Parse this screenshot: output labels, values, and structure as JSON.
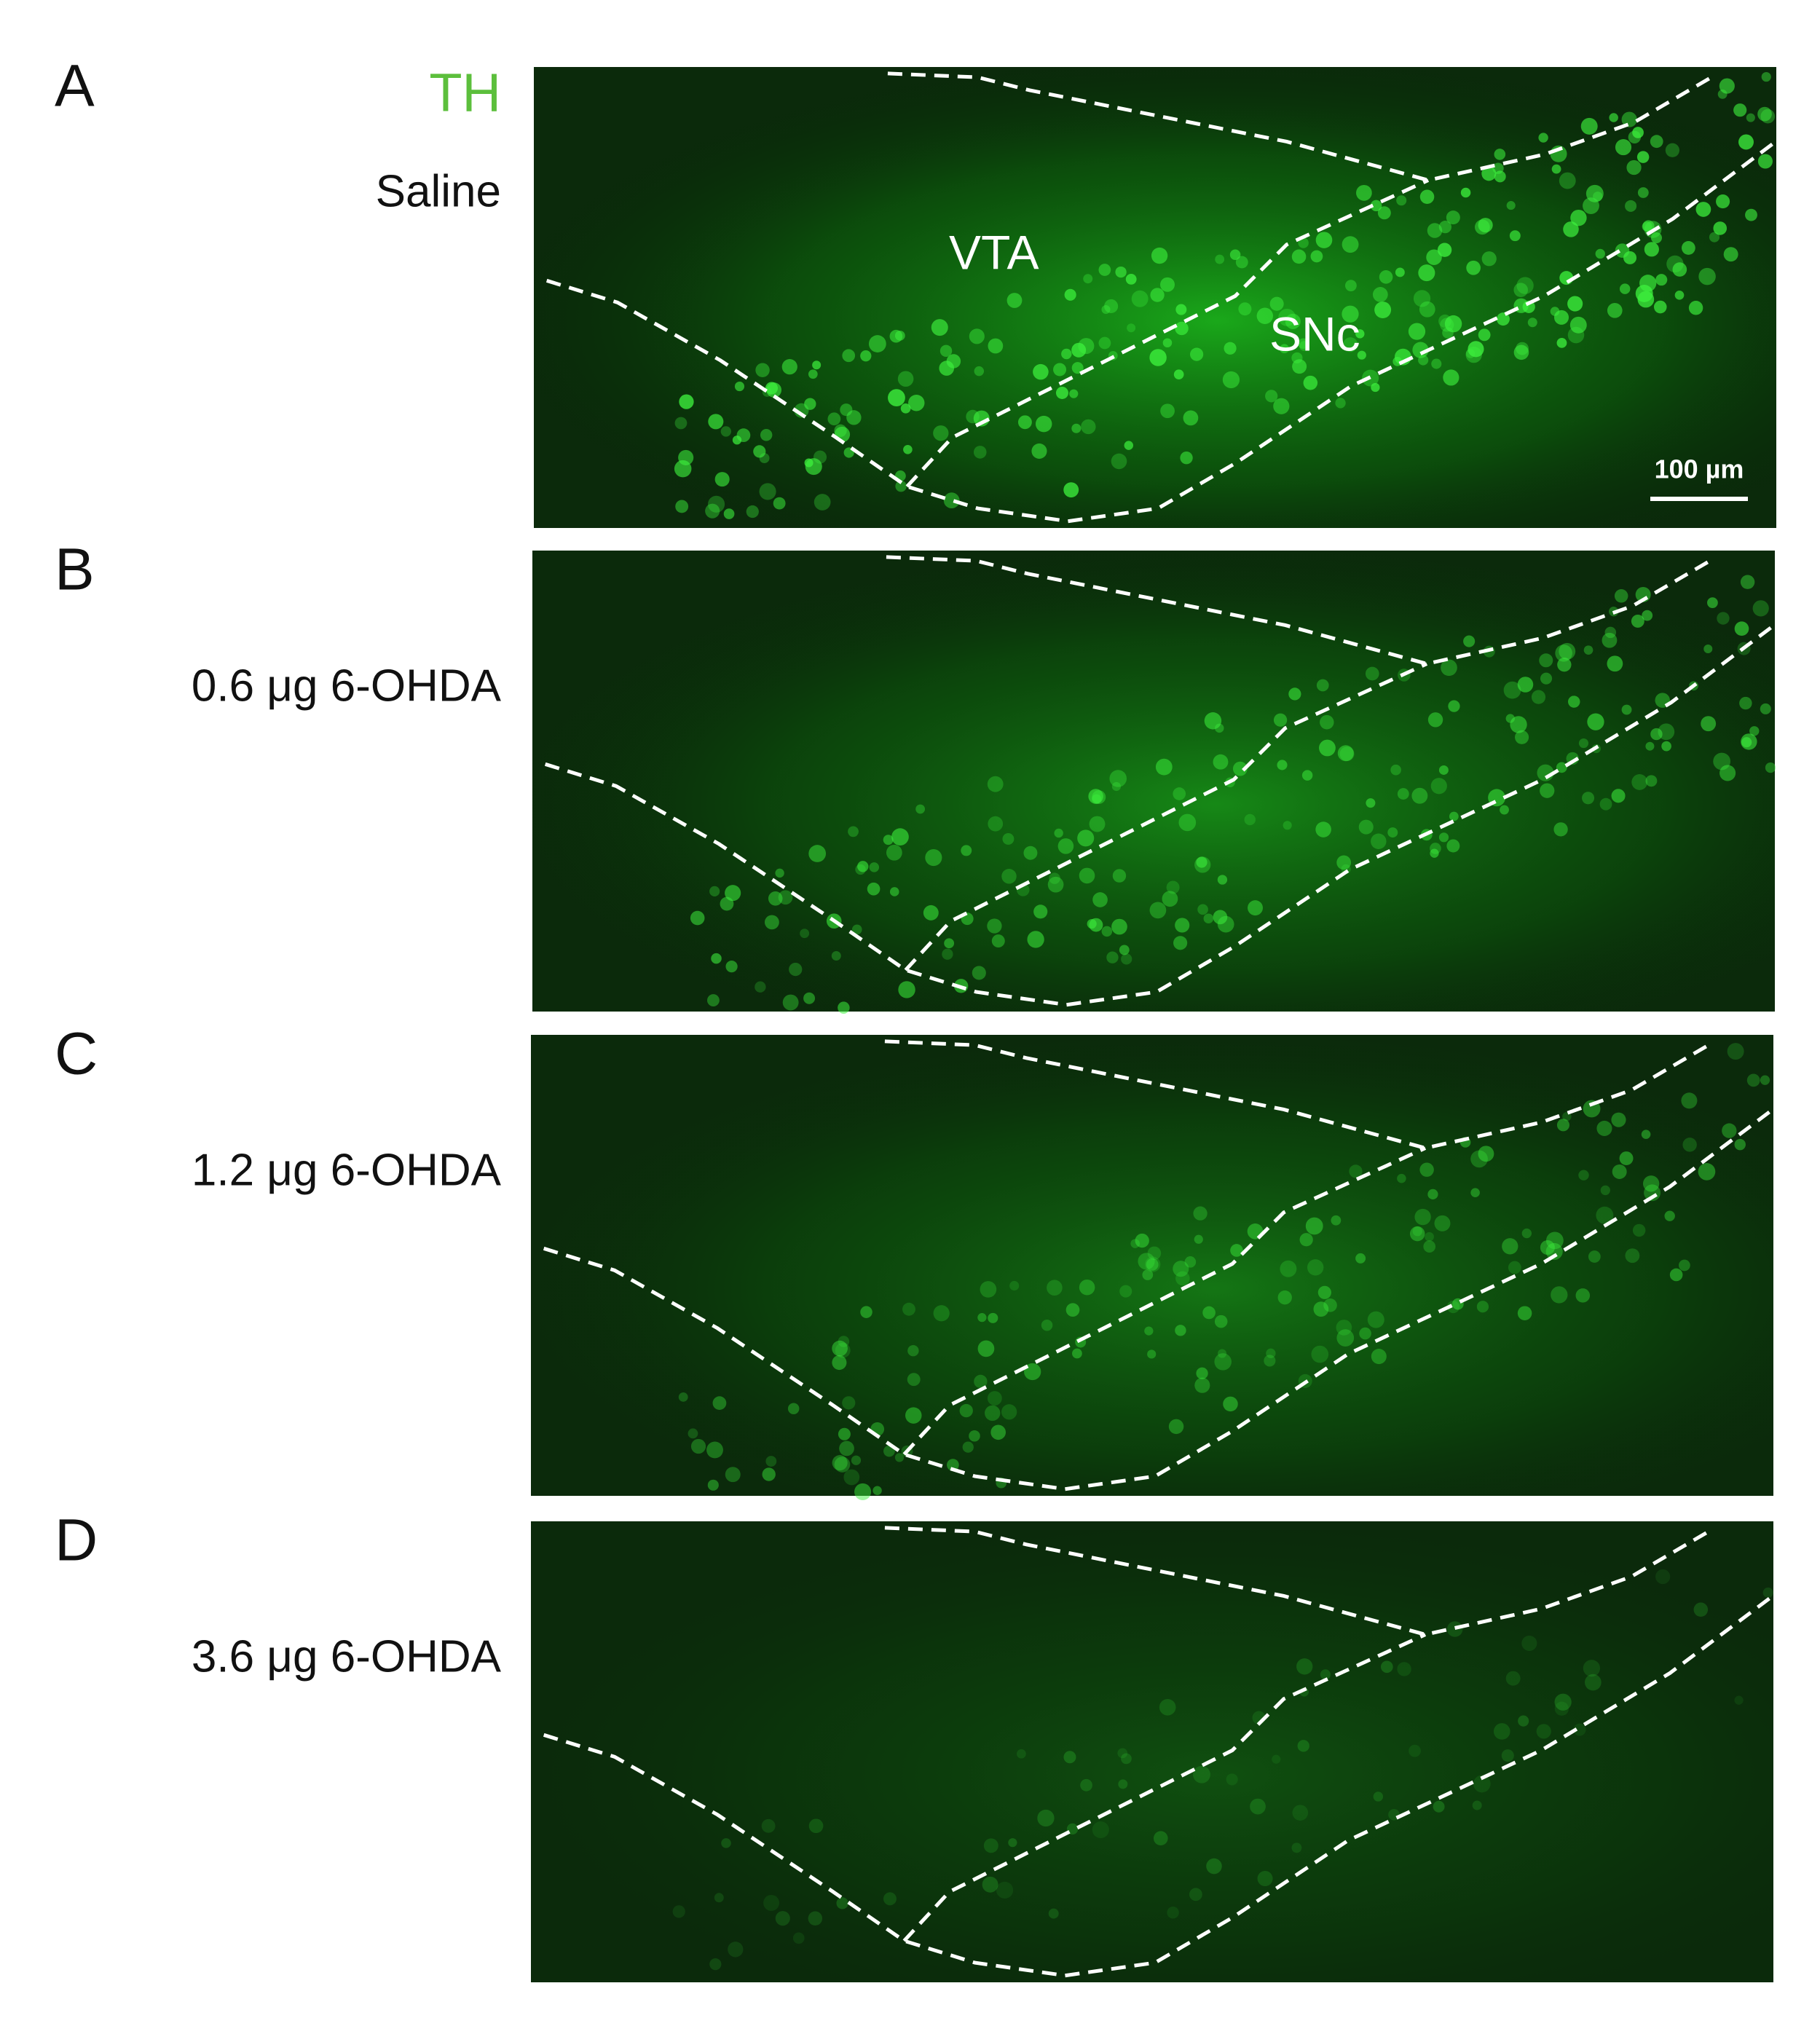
{
  "figure": {
    "stain": "TH",
    "regions": [
      "VTA",
      "SNc"
    ],
    "scale_bar": "100 µm",
    "panels": [
      {
        "letter": "A",
        "condition": "Saline"
      },
      {
        "letter": "B",
        "condition": "0.6 μg 6-OHDA"
      },
      {
        "letter": "C",
        "condition": "1.2 μg 6-OHDA"
      },
      {
        "letter": "D",
        "condition": "3.6 μg 6-OHDA"
      }
    ]
  }
}
